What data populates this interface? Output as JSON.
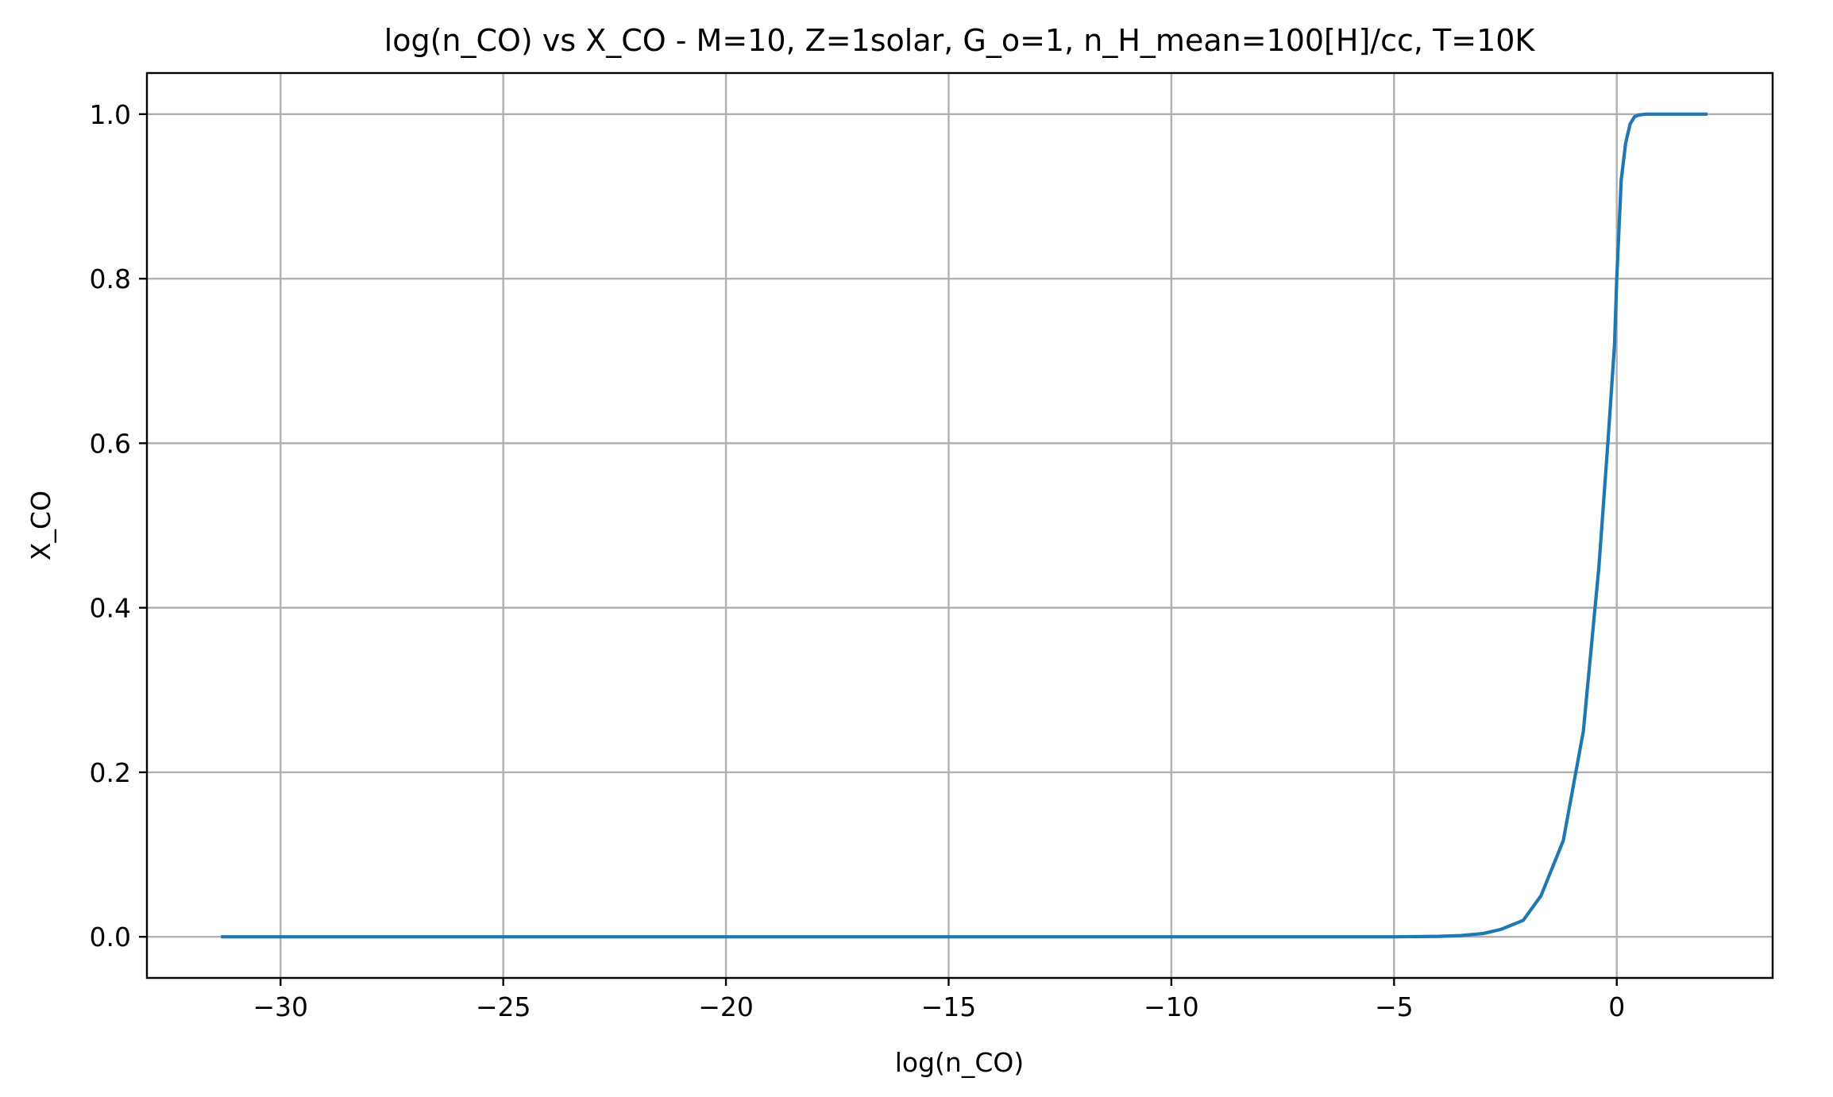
{
  "chart_data": {
    "type": "line",
    "title": "log(n_CO) vs X_CO - M=10, Z=1solar, G_o=1, n_H_mean=100[H]/cc, T=10K",
    "xlabel": "log(n_CO)",
    "ylabel": "X_CO",
    "xlim": [
      -33.0,
      3.5
    ],
    "ylim": [
      -0.05,
      1.05
    ],
    "grid": true,
    "x_ticks": [
      -30,
      -25,
      -20,
      -15,
      -10,
      -5,
      0
    ],
    "x_tick_labels": [
      "−30",
      "−25",
      "−20",
      "−15",
      "−10",
      "−5",
      "0"
    ],
    "y_ticks": [
      0.0,
      0.2,
      0.4,
      0.6,
      0.8,
      1.0
    ],
    "y_tick_labels": [
      "0.0",
      "0.2",
      "0.4",
      "0.6",
      "0.8",
      "1.0"
    ],
    "series": [
      {
        "color": "#1f77b4",
        "x": [
          -31.3,
          -25.0,
          -20.0,
          -15.0,
          -10.0,
          -5.0,
          -4.0,
          -3.5,
          -3.0,
          -2.6,
          -2.1,
          -1.7,
          -1.2,
          -0.75,
          -0.4,
          -0.2,
          -0.05,
          0.0,
          0.1,
          0.2,
          0.3,
          0.4,
          0.5,
          0.65,
          0.8,
          1.0,
          1.5,
          2.0
        ],
        "y": [
          0.0,
          0.0,
          0.0,
          0.0,
          0.0,
          0.0,
          0.0005,
          0.0015,
          0.004,
          0.009,
          0.02,
          0.05,
          0.117,
          0.25,
          0.45,
          0.6,
          0.72,
          0.8,
          0.92,
          0.965,
          0.988,
          0.997,
          0.999,
          1.0,
          1.0,
          1.0,
          1.0,
          1.0
        ]
      }
    ]
  }
}
